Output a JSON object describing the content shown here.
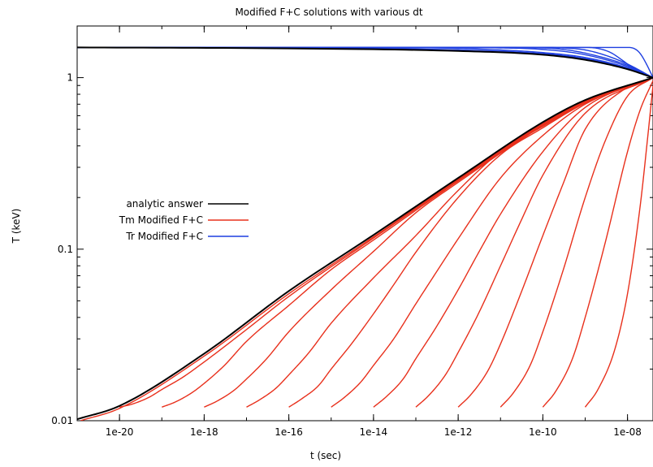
{
  "chart_data": {
    "type": "line",
    "title": "Modified F+C solutions with various dt",
    "xlabel": "t (sec)",
    "ylabel": "T (keV)",
    "x_scale": "log",
    "y_scale": "log",
    "xlim": [
      1e-21,
      4e-08
    ],
    "ylim": [
      0.01,
      2.0
    ],
    "x_ticks": [
      {
        "value": 1e-20,
        "label": "1e-20"
      },
      {
        "value": 1e-18,
        "label": "1e-18"
      },
      {
        "value": 1e-16,
        "label": "1e-16"
      },
      {
        "value": 1e-14,
        "label": "1e-14"
      },
      {
        "value": 1e-12,
        "label": "1e-12"
      },
      {
        "value": 1e-10,
        "label": "1e-10"
      },
      {
        "value": 1e-08,
        "label": "1e-08"
      }
    ],
    "y_ticks": [
      {
        "value": 0.01,
        "label": "0.01"
      },
      {
        "value": 0.1,
        "label": "0.1"
      },
      {
        "value": 1,
        "label": "1"
      }
    ],
    "grid": false,
    "legend_position": "left-middle",
    "series": [
      {
        "name": "analytic answer",
        "color": "#000000",
        "curves": [
          {
            "x": [
              1e-21,
              1e-20,
              1e-18,
              1e-16,
              1e-14,
              1e-12,
              1e-10,
              1e-09,
              4e-08
            ],
            "y": [
              0.0102,
              0.0122,
              0.0246,
              0.057,
              0.121,
              0.26,
              0.55,
              0.74,
              1.0
            ]
          },
          {
            "x": [
              1e-21,
              1e-16,
              1e-12,
              1e-10,
              1e-09,
              1e-08,
              4e-08
            ],
            "y": [
              1.5,
              1.48,
              1.43,
              1.36,
              1.27,
              1.12,
              1.0
            ]
          }
        ]
      },
      {
        "name": "Tm Modified F+C",
        "color": "#e8301c",
        "curves": [
          {
            "x": [
              1.2e-21,
              1e-20,
              1e-18,
              1e-16,
              1e-14,
              1e-12,
              1e-10,
              1e-09,
              4e-08
            ],
            "y": [
              0.01,
              0.0118,
              0.0238,
              0.055,
              0.118,
              0.255,
              0.54,
              0.73,
              1.0
            ]
          },
          {
            "x": [
              1e-20,
              2e-20,
              5e-20,
              1e-19,
              3e-19,
              1e-18,
              1e-17,
              1e-16,
              1e-14,
              1e-12,
              1e-10,
              1e-09,
              4e-08
            ],
            "y": [
              0.012,
              0.0125,
              0.0137,
              0.0152,
              0.0178,
              0.022,
              0.034,
              0.053,
              0.116,
              0.253,
              0.535,
              0.73,
              1.0
            ]
          },
          {
            "x": [
              1e-19,
              2e-19,
              5e-19,
              1e-18,
              3e-18,
              1e-17,
              1e-16,
              1e-15,
              1e-14,
              1e-12,
              1e-10,
              1e-09,
              4e-08
            ],
            "y": [
              0.012,
              0.0128,
              0.0145,
              0.0165,
              0.021,
              0.029,
              0.047,
              0.076,
              0.113,
              0.25,
              0.53,
              0.725,
              1.0
            ]
          },
          {
            "x": [
              1e-18,
              2e-18,
              5e-18,
              1e-17,
              3e-17,
              1e-16,
              1e-15,
              1e-14,
              1e-13,
              1e-12,
              1e-10,
              1e-09,
              4e-08
            ],
            "y": [
              0.012,
              0.013,
              0.015,
              0.0175,
              0.023,
              0.033,
              0.058,
              0.097,
              0.163,
              0.245,
              0.525,
              0.72,
              1.0
            ]
          },
          {
            "x": [
              1e-17,
              2e-17,
              5e-17,
              1e-16,
              3e-16,
              1e-15,
              1e-14,
              1e-13,
              1e-12,
              1e-11,
              1e-10,
              1e-09,
              4e-08
            ],
            "y": [
              0.012,
              0.0132,
              0.0155,
              0.0185,
              0.025,
              0.037,
              0.068,
              0.12,
              0.22,
              0.37,
              0.52,
              0.715,
              1.0
            ]
          },
          {
            "x": [
              1e-16,
              2e-16,
              5e-16,
              1e-15,
              3e-15,
              1e-14,
              3e-14,
              1e-13,
              1e-12,
              1e-11,
              1e-10,
              1e-09,
              4e-08
            ],
            "y": [
              0.012,
              0.0134,
              0.016,
              0.02,
              0.028,
              0.042,
              0.062,
              0.096,
              0.2,
              0.355,
              0.51,
              0.71,
              1.0
            ]
          },
          {
            "x": [
              1e-15,
              2e-15,
              5e-15,
              1e-14,
              3e-14,
              1e-13,
              3e-13,
              1e-12,
              1e-11,
              1e-10,
              1e-09,
              4e-08
            ],
            "y": [
              0.012,
              0.0136,
              0.0168,
              0.021,
              0.03,
              0.048,
              0.073,
              0.115,
              0.26,
              0.46,
              0.7,
              1.0
            ]
          },
          {
            "x": [
              1e-14,
              2e-14,
              5e-14,
              1e-13,
              3e-13,
              1e-12,
              3e-12,
              1e-11,
              1e-10,
              1e-09,
              4e-08
            ],
            "y": [
              0.012,
              0.0138,
              0.0175,
              0.023,
              0.035,
              0.058,
              0.095,
              0.16,
              0.37,
              0.67,
              1.0
            ]
          },
          {
            "x": [
              1e-13,
              2e-13,
              5e-13,
              1e-12,
              3e-12,
              1e-11,
              3e-11,
              1e-10,
              1e-09,
              4e-08
            ],
            "y": [
              0.012,
              0.014,
              0.0185,
              0.025,
              0.042,
              0.08,
              0.145,
              0.27,
              0.62,
              1.0
            ]
          },
          {
            "x": [
              1e-12,
              2e-12,
              5e-12,
              1e-11,
              3e-11,
              1e-10,
              3e-10,
              1e-09,
              1e-08,
              4e-08
            ],
            "y": [
              0.012,
              0.0142,
              0.0195,
              0.028,
              0.055,
              0.12,
              0.24,
              0.5,
              0.88,
              1.0
            ]
          },
          {
            "x": [
              1e-11,
              2e-11,
              5e-11,
              1e-10,
              3e-10,
              1e-09,
              3e-09,
              1e-08,
              4e-08
            ],
            "y": [
              0.012,
              0.0145,
              0.021,
              0.033,
              0.075,
              0.2,
              0.43,
              0.78,
              1.0
            ]
          },
          {
            "x": [
              1e-10,
              2e-10,
              5e-10,
              1e-09,
              3e-09,
              1e-08,
              2e-08,
              4e-08
            ],
            "y": [
              0.012,
              0.0148,
              0.023,
              0.04,
              0.11,
              0.37,
              0.65,
              0.96
            ]
          },
          {
            "x": [
              1e-09,
              2e-09,
              5e-09,
              1e-08,
              2e-08,
              3e-08,
              4e-08
            ],
            "y": [
              0.012,
              0.0152,
              0.026,
              0.055,
              0.18,
              0.45,
              0.9
            ]
          }
        ]
      },
      {
        "name": "Tr Modified F+C",
        "color": "#1f3fe0",
        "curves": [
          {
            "x": [
              1e-21,
              1e-16,
              1e-12,
              1e-10,
              1e-09,
              1e-08,
              4e-08
            ],
            "y": [
              1.5,
              1.49,
              1.45,
              1.38,
              1.29,
              1.13,
              1.0
            ]
          },
          {
            "x": [
              1e-21,
              1e-14,
              1e-12,
              1e-11,
              1e-10,
              1e-09,
              1e-08,
              4e-08
            ],
            "y": [
              1.5,
              1.5,
              1.48,
              1.45,
              1.4,
              1.31,
              1.14,
              1.0
            ]
          },
          {
            "x": [
              1e-21,
              1e-12,
              1e-11,
              1e-10,
              1e-09,
              1e-08,
              4e-08
            ],
            "y": [
              1.5,
              1.5,
              1.49,
              1.46,
              1.36,
              1.16,
              1.0
            ]
          },
          {
            "x": [
              1e-21,
              1e-11,
              1e-10,
              3e-10,
              1e-09,
              1e-08,
              4e-08
            ],
            "y": [
              1.5,
              1.5,
              1.49,
              1.46,
              1.39,
              1.18,
              1.0
            ]
          },
          {
            "x": [
              1e-21,
              1e-10,
              3e-10,
              1e-09,
              3e-09,
              1e-08,
              4e-08
            ],
            "y": [
              1.5,
              1.5,
              1.49,
              1.45,
              1.35,
              1.2,
              1.0
            ]
          },
          {
            "x": [
              1e-21,
              1e-09,
              2e-09,
              4e-09,
              8e-09,
              1.5e-08,
              4e-08
            ],
            "y": [
              1.5,
              1.5,
              1.48,
              1.4,
              1.25,
              1.12,
              1.0
            ]
          },
          {
            "x": [
              1e-21,
              1e-08,
              1.5e-08,
              2e-08,
              2.8e-08,
              4e-08
            ],
            "y": [
              1.5,
              1.5,
              1.47,
              1.38,
              1.2,
              1.0
            ]
          }
        ]
      }
    ]
  }
}
